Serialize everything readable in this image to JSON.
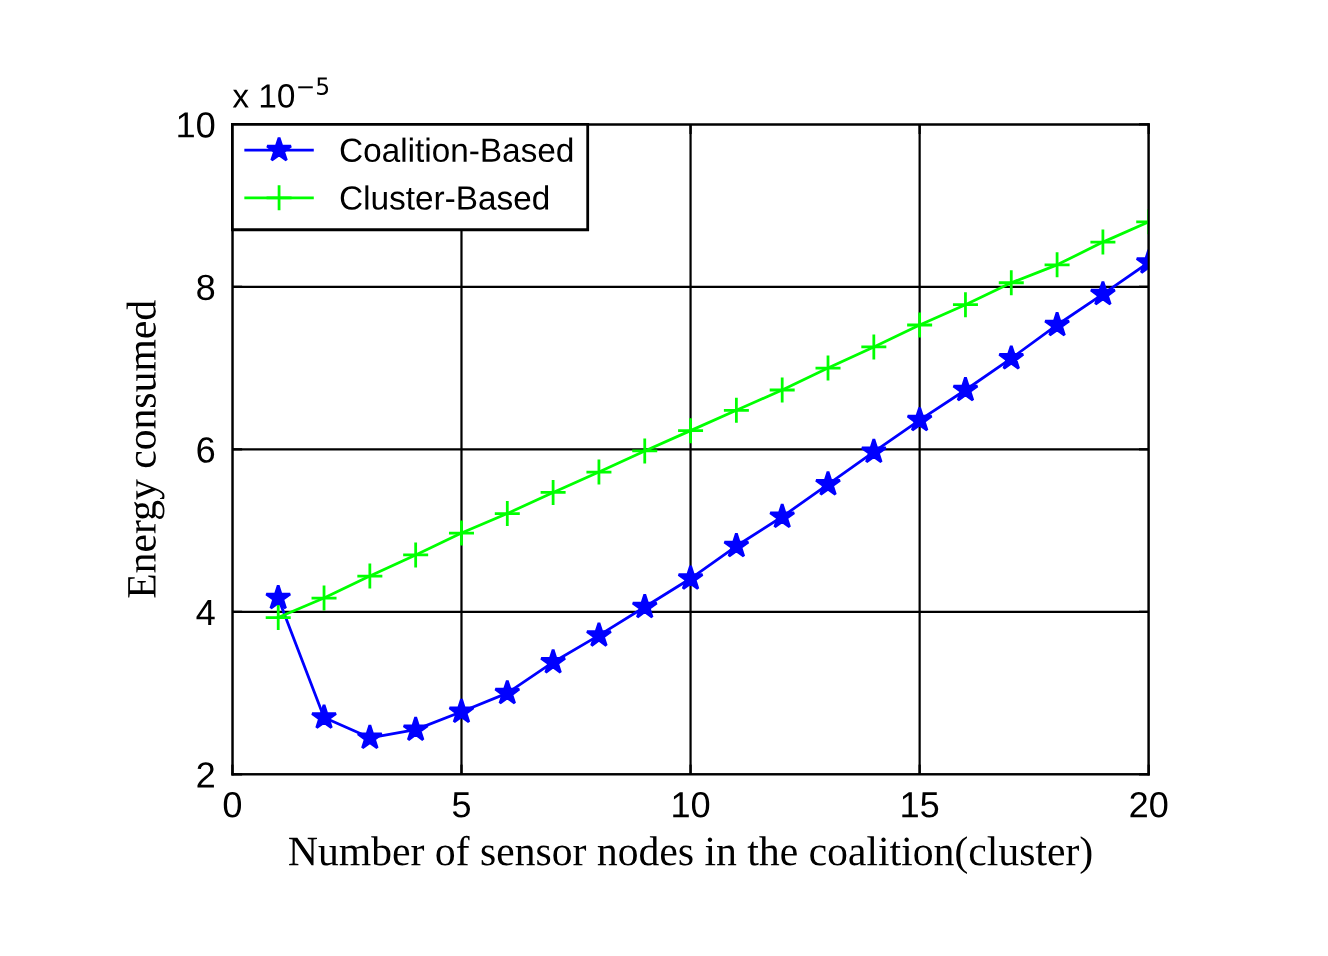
{
  "chart_data": {
    "type": "line",
    "xlabel": "Number of sensor nodes in the coalition(cluster)",
    "ylabel": "Energy consumed",
    "annotations": [
      "x 10$^{−5}$"
    ],
    "x": [
      1,
      2,
      3,
      4,
      5,
      6,
      7,
      8,
      9,
      10,
      11,
      12,
      13,
      14,
      15,
      16,
      17,
      18,
      19,
      20
    ],
    "series": [
      {
        "name": "Coalition-Based",
        "color": "#0000ff",
        "marker": "star",
        "values": [
          4.17,
          2.7,
          2.45,
          2.55,
          2.77,
          3.0,
          3.38,
          3.71,
          4.06,
          4.41,
          4.81,
          5.17,
          5.57,
          5.97,
          6.36,
          6.73,
          7.12,
          7.53,
          7.91,
          8.3
        ]
      },
      {
        "name": "Cluster-Based",
        "color": "#00ff00",
        "marker": "cross",
        "values": [
          3.93,
          4.17,
          4.44,
          4.7,
          4.97,
          5.21,
          5.47,
          5.72,
          5.98,
          6.23,
          6.48,
          6.73,
          7.0,
          7.26,
          7.53,
          7.78,
          8.05,
          8.27,
          8.55,
          8.8
        ]
      }
    ],
    "xlim": [
      0,
      20
    ],
    "ylim": [
      2,
      10
    ],
    "xticks": [
      0,
      5,
      10,
      15,
      20
    ],
    "yticks": [
      2,
      4,
      6,
      8,
      10
    ],
    "grid": true,
    "legend": "top left",
    "line_style": "solid"
  }
}
